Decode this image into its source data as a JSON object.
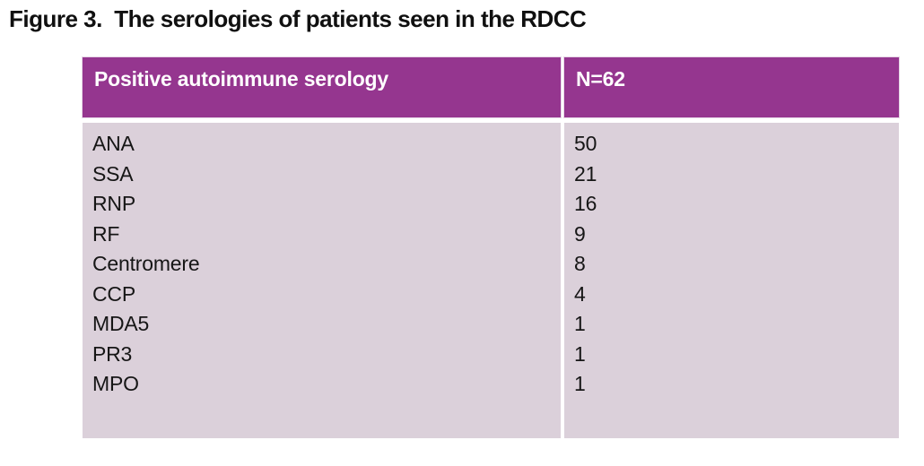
{
  "figure": {
    "title": "Figure 3.  The serologies of patients seen in the RDCC"
  },
  "table": {
    "header": {
      "label": "Positive autoimmune serology",
      "value": "N=62"
    },
    "rows": [
      {
        "label": "ANA",
        "value": "50"
      },
      {
        "label": "SSA",
        "value": "21"
      },
      {
        "label": "RNP",
        "value": "16"
      },
      {
        "label": "RF",
        "value": "9"
      },
      {
        "label": "Centromere",
        "value": "8"
      },
      {
        "label": "CCP",
        "value": "4"
      },
      {
        "label": "MDA5",
        "value": "1"
      },
      {
        "label": "PR3",
        "value": "1"
      },
      {
        "label": "MPO",
        "value": "1"
      }
    ]
  },
  "colors": {
    "page_bg": "#FFFFFF",
    "header_bg": "#95368F",
    "header_text": "#FFFFFF",
    "body_bg": "#DBD0DA",
    "body_text": "#161616"
  },
  "chart_data": {
    "type": "table",
    "title": "Figure 3.  The serologies of patients seen in the RDCC",
    "columns": [
      "Positive autoimmune serology",
      "N=62"
    ],
    "categories": [
      "ANA",
      "SSA",
      "RNP",
      "RF",
      "Centromere",
      "CCP",
      "MDA5",
      "PR3",
      "MPO"
    ],
    "values": [
      50,
      21,
      16,
      9,
      8,
      4,
      1,
      1,
      1
    ]
  }
}
